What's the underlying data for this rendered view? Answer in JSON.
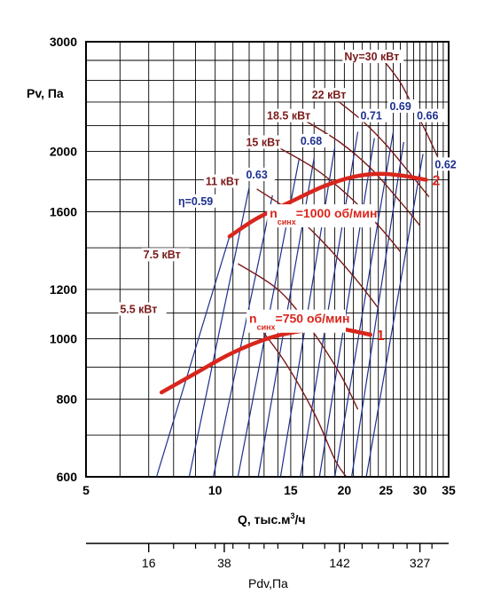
{
  "chart_data": {
    "type": "line",
    "title": "",
    "ylabel": "Pv, Па",
    "xlabel_prefix": "Q, тыс.м",
    "xlabel_sup": "3",
    "xlabel_suffix": "/ч",
    "xscale": "log",
    "yscale": "log",
    "xlim": [
      5,
      35
    ],
    "ylim": [
      600,
      3000
    ],
    "x_ticks": [
      5,
      10,
      15,
      20,
      25,
      30,
      35
    ],
    "x_tick_labels": [
      "5",
      "10",
      "15",
      "20",
      "25",
      "30",
      "35"
    ],
    "y_ticks": [
      600,
      800,
      1000,
      1200,
      1600,
      2000,
      3000
    ],
    "y_tick_labels": [
      "600",
      "800",
      "1000",
      "1200",
      "1600",
      "2000",
      "3000"
    ],
    "x_minor_gridlines": [
      6,
      7,
      8,
      9,
      11,
      12,
      13,
      14,
      16,
      17,
      18,
      19,
      21,
      22,
      23,
      24,
      26,
      27,
      28,
      29,
      31,
      32,
      33,
      34
    ],
    "y_minor_gridlines": [
      700,
      900,
      1100,
      1400,
      1800,
      2200,
      2400,
      2600,
      2800
    ],
    "grid": true,
    "speed_curves": [
      {
        "name_prefix": "n",
        "name_sub": "синх",
        "name_suffix": "=750 об/мин",
        "end_label": "1",
        "color": "#d9261c",
        "points": [
          [
            7.5,
            820
          ],
          [
            9,
            880
          ],
          [
            11,
            950
          ],
          [
            13.5,
            1005
          ],
          [
            16,
            1030
          ],
          [
            18,
            1040
          ],
          [
            20,
            1035
          ],
          [
            23,
            1015
          ]
        ]
      },
      {
        "name_prefix": "n",
        "name_sub": "синх",
        "name_suffix": "=1000 об/мин",
        "end_label": "2",
        "color": "#d9261c",
        "points": [
          [
            10.8,
            1460
          ],
          [
            12.5,
            1560
          ],
          [
            15,
            1660
          ],
          [
            18,
            1760
          ],
          [
            21,
            1820
          ],
          [
            24,
            1840
          ],
          [
            27,
            1830
          ],
          [
            31,
            1800
          ]
        ]
      }
    ],
    "efficiency_lines": {
      "color": "#1c2f8f",
      "labels": [
        {
          "text": "η=0.59",
          "at": [
            8.2,
            1640
          ]
        },
        {
          "text": "0.63",
          "at": [
            11.8,
            1810
          ]
        },
        {
          "text": "0.68",
          "at": [
            15.8,
            2050
          ]
        },
        {
          "text": "0.71",
          "at": [
            21.8,
            2250
          ]
        },
        {
          "text": "0.69",
          "at": [
            25.5,
            2330
          ]
        },
        {
          "text": "0.66",
          "at": [
            29.5,
            2250
          ]
        },
        {
          "text": "0.62",
          "at": [
            32.5,
            1880
          ]
        }
      ],
      "lines": [
        [
          [
            7.3,
            600
          ],
          [
            10.8,
            1460
          ]
        ],
        [
          [
            8.7,
            600
          ],
          [
            12.0,
            1750
          ]
        ],
        [
          [
            9.9,
            600
          ],
          [
            13.6,
            1700
          ]
        ],
        [
          [
            11.3,
            600
          ],
          [
            15.7,
            1950
          ]
        ],
        [
          [
            12.6,
            600
          ],
          [
            17.0,
            1950
          ]
        ],
        [
          [
            14.2,
            600
          ],
          [
            19.0,
            2030
          ]
        ],
        [
          [
            15.8,
            600
          ],
          [
            21.5,
            2150
          ]
        ],
        [
          [
            17.5,
            600
          ],
          [
            23.5,
            2100
          ]
        ],
        [
          [
            19.0,
            600
          ],
          [
            26.0,
            2150
          ]
        ],
        [
          [
            20.8,
            600
          ],
          [
            27.5,
            2070
          ]
        ],
        [
          [
            22.5,
            600
          ],
          [
            30.5,
            1980
          ]
        ]
      ]
    },
    "power_curves": {
      "color": "#7a1a1a",
      "items": [
        {
          "label": "5.5 кВт",
          "label_at": [
            6.0,
            1100
          ],
          "points": [
            [
              12.2,
              1080
            ],
            [
              14.5,
              920
            ],
            [
              17,
              760
            ],
            [
              19,
              640
            ],
            [
              20.2,
              600
            ]
          ]
        },
        {
          "label": "7.5 кВт",
          "label_at": [
            6.8,
            1345
          ],
          "points": [
            [
              11.3,
              1320
            ],
            [
              14,
              1200
            ],
            [
              16.5,
              1050
            ],
            [
              19.5,
              880
            ],
            [
              21.5,
              770
            ]
          ]
        },
        {
          "label": "11 кВт",
          "label_at": [
            9.5,
            1765
          ],
          "points": [
            [
              12.5,
              1740
            ],
            [
              15,
              1600
            ],
            [
              17.5,
              1450
            ],
            [
              21,
              1260
            ],
            [
              24,
              1120
            ]
          ]
        },
        {
          "label": "15 кВт",
          "label_at": [
            11.8,
            2040
          ],
          "points": [
            [
              14.2,
              2020
            ],
            [
              17,
              1880
            ],
            [
              20,
              1720
            ],
            [
              24,
              1520
            ],
            [
              27,
              1380
            ]
          ]
        },
        {
          "label": "18.5 кВт",
          "label_at": [
            13.2,
            2250
          ],
          "points": [
            [
              16.2,
              2240
            ],
            [
              19.5,
              2070
            ],
            [
              23,
              1880
            ],
            [
              27,
              1660
            ],
            [
              30,
              1520
            ]
          ]
        },
        {
          "label": "22 кВт",
          "label_at": [
            16.8,
            2430
          ],
          "points": [
            [
              19.3,
              2410
            ],
            [
              22,
              2240
            ],
            [
              25,
              2050
            ],
            [
              28.5,
              1840
            ],
            [
              31.5,
              1690
            ]
          ]
        },
        {
          "label": "Ny=30 кВт",
          "label_at": [
            20.0,
            2800
          ],
          "points": [
            [
              24.8,
              2790
            ],
            [
              27,
              2580
            ],
            [
              29,
              2350
            ],
            [
              31,
              2150
            ],
            [
              33,
              1960
            ]
          ]
        }
      ]
    },
    "secondary_axis": {
      "label": "Pdv,Па",
      "tick_labels": [
        {
          "text": "16",
          "at_q": 7.0
        },
        {
          "text": "38",
          "at_q": 10.5
        },
        {
          "text": "142",
          "at_q": 19.5
        },
        {
          "text": "327",
          "at_q": 30.0
        }
      ],
      "minor_ticks_q": [
        8,
        9,
        10,
        11,
        12,
        13,
        14,
        16,
        18,
        20,
        22,
        24,
        26,
        28,
        32
      ]
    }
  }
}
